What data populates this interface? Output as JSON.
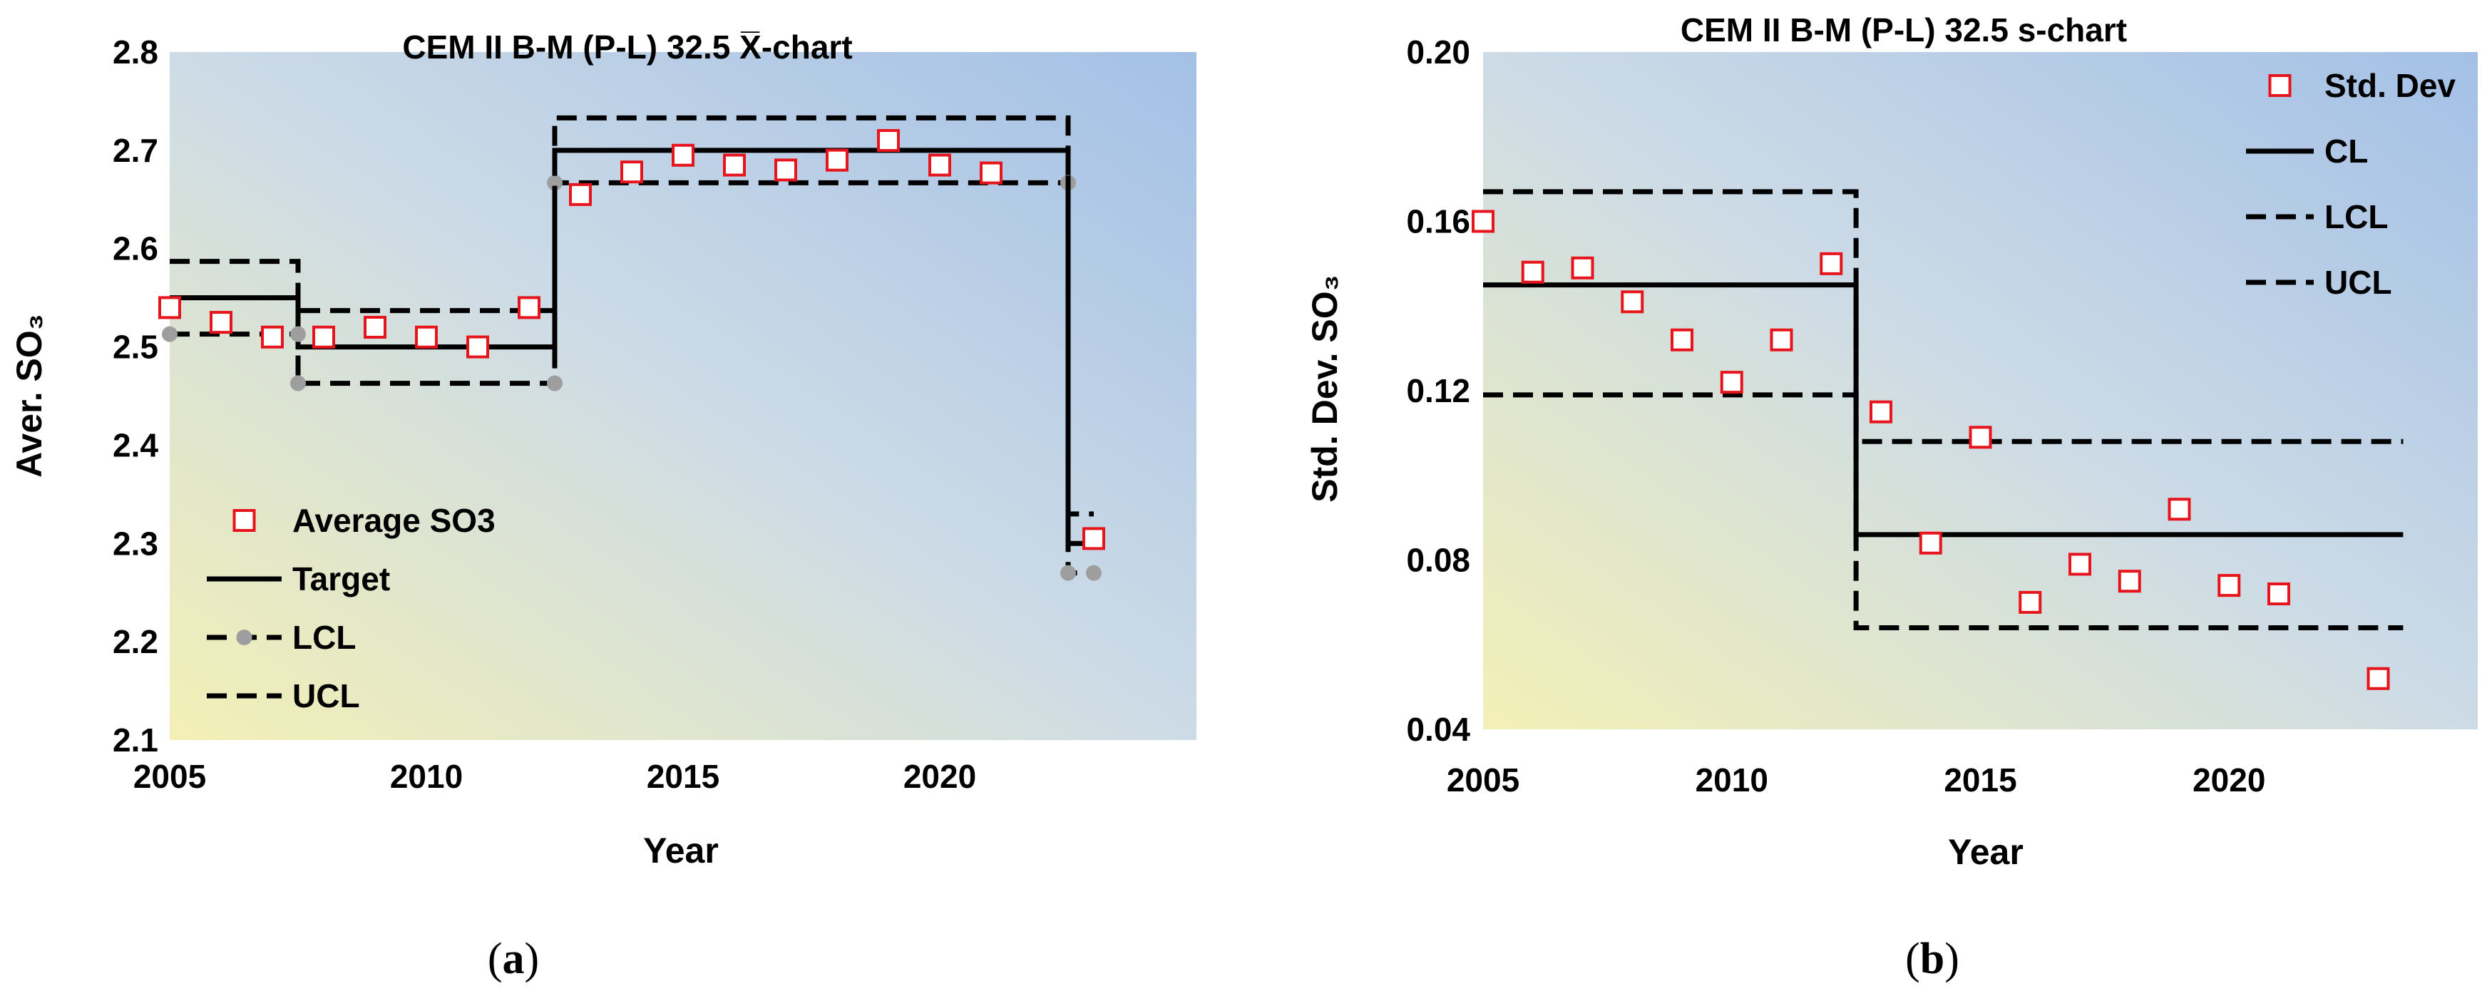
{
  "chart_data": [
    {
      "id": "a",
      "type": "line",
      "title": "CEM II B-M (P-L) 32.5 X̅-chart",
      "xlabel": "Year",
      "ylabel": "Aver. SO₃",
      "xlim": [
        2005,
        2025
      ],
      "ylim": [
        2.1,
        2.8
      ],
      "xticks": [
        "2005",
        "2010",
        "2015",
        "2020"
      ],
      "yticks": [
        "2.1",
        "2.2",
        "2.3",
        "2.4",
        "2.5",
        "2.6",
        "2.7",
        "2.8"
      ],
      "legend_position": "left",
      "caption": "(a)",
      "series": [
        {
          "name": "Average SO3",
          "kind": "markers",
          "x": [
            2005,
            2006,
            2007,
            2008,
            2009,
            2010,
            2011,
            2012,
            2013,
            2014,
            2015,
            2016,
            2017,
            2018,
            2019,
            2020,
            2021,
            2023
          ],
          "y": [
            2.54,
            2.525,
            2.51,
            2.51,
            2.52,
            2.51,
            2.5,
            2.54,
            2.655,
            2.678,
            2.695,
            2.685,
            2.68,
            2.69,
            2.71,
            2.685,
            2.677,
            2.305
          ]
        },
        {
          "name": "Target",
          "kind": "step-solid",
          "x": [
            2005,
            2007.5,
            2007.5,
            2012.5,
            2012.5,
            2022.5,
            2022.5,
            2023
          ],
          "y": [
            2.55,
            2.55,
            2.5,
            2.5,
            2.7,
            2.7,
            2.3,
            2.3
          ]
        },
        {
          "name": "LCL",
          "kind": "step-dashed-dots",
          "x": [
            2005,
            2007.5,
            2007.5,
            2012.5,
            2012.5,
            2022.5,
            2022.5,
            2023
          ],
          "y": [
            2.513,
            2.513,
            2.463,
            2.463,
            2.667,
            2.667,
            2.27,
            2.27
          ]
        },
        {
          "name": "UCL",
          "kind": "step-dashed",
          "x": [
            2005,
            2007.5,
            2007.5,
            2012.5,
            2012.5,
            2022.5,
            2022.5,
            2023
          ],
          "y": [
            2.587,
            2.587,
            2.537,
            2.537,
            2.733,
            2.733,
            2.33,
            2.33
          ]
        }
      ]
    },
    {
      "id": "b",
      "type": "line",
      "title": "CEM II B-M (P-L) 32.5 s-chart",
      "xlabel": "Year",
      "ylabel": "Std. Dev. SO₃",
      "xlim": [
        2005,
        2025
      ],
      "ylim": [
        0.04,
        0.2
      ],
      "xticks": [
        "2005",
        "2010",
        "2015",
        "2020"
      ],
      "yticks": [
        "0.04",
        "0.08",
        "0.12",
        "0.16",
        "0.20"
      ],
      "legend_position": "top-right",
      "caption": "(b)",
      "series": [
        {
          "name": "Std. Dev",
          "kind": "markers",
          "x": [
            2005,
            2006,
            2007,
            2008,
            2009,
            2010,
            2011,
            2012,
            2013,
            2014,
            2015,
            2016,
            2017,
            2018,
            2019,
            2020,
            2021,
            2023
          ],
          "y": [
            0.16,
            0.148,
            0.149,
            0.141,
            0.132,
            0.122,
            0.132,
            0.15,
            0.115,
            0.084,
            0.109,
            0.07,
            0.079,
            0.075,
            0.092,
            0.074,
            0.072,
            0.052
          ]
        },
        {
          "name": "CL",
          "kind": "step-solid",
          "x": [
            2005,
            2012.5,
            2012.5,
            2023.5
          ],
          "y": [
            0.145,
            0.145,
            0.086,
            0.086
          ]
        },
        {
          "name": "LCL",
          "kind": "step-dashed",
          "x": [
            2005,
            2012.5,
            2012.5,
            2023.5
          ],
          "y": [
            0.119,
            0.119,
            0.064,
            0.064
          ]
        },
        {
          "name": "UCL",
          "kind": "step-dashed",
          "x": [
            2005,
            2012.5,
            2012.5,
            2023.5
          ],
          "y": [
            0.167,
            0.167,
            0.108,
            0.108
          ]
        }
      ]
    }
  ]
}
